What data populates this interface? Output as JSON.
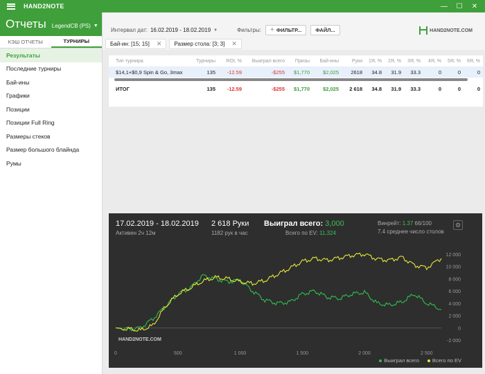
{
  "app": {
    "title": "HAND2NOTE",
    "window_controls": [
      "—",
      "☐",
      "✕"
    ]
  },
  "sidebar": {
    "title": "Отчеты",
    "account": "LegendCB (PS)",
    "tabs": [
      {
        "label": "КЭШ ОТЧЕТЫ",
        "active": false
      },
      {
        "label": "ТУРНИРЫ",
        "active": true
      }
    ],
    "items": [
      {
        "label": "Результаты",
        "active": true
      },
      {
        "label": "Последние турниры",
        "active": false
      },
      {
        "label": "Бай-ины",
        "active": false
      },
      {
        "label": "Графики",
        "active": false
      },
      {
        "label": "Позиции",
        "active": false
      },
      {
        "label": "Позиции Full Ring",
        "active": false
      },
      {
        "label": "Размеры стеков",
        "active": false
      },
      {
        "label": "Размер большого блайнда",
        "active": false
      },
      {
        "label": "Румы",
        "active": false
      }
    ]
  },
  "toolbar": {
    "interval_label": "Интервал дат:",
    "date_range": "16.02.2019 - 18.02.2019",
    "filters_label": "Фильтры:",
    "filter_button": "ФИЛЬТР...",
    "file_button": "ФАЙЛ...",
    "logo_text": "HAND2NOTE.COM"
  },
  "chips": [
    {
      "label": "Бай-ин: [15; 15]"
    },
    {
      "label": "Размер стола: [3; 3]"
    }
  ],
  "table": {
    "columns": [
      "Тип турнира",
      "Турниры",
      "ROI, %",
      "Выиграл всего",
      "Призы",
      "Бай-ины",
      "Руки",
      "1Я, %",
      "2Я, %",
      "3Я, %",
      "4Я, %",
      "5Я, %",
      "6Я, %"
    ],
    "rows": [
      [
        "$14,1+$0,9 Spin & Go, 3max",
        "135",
        "-12.59",
        "-$255",
        "$1,770",
        "$2,025",
        "2618",
        "34.8",
        "31.9",
        "33.3",
        "0",
        "0",
        "0"
      ]
    ],
    "total": [
      "ИТОГ",
      "135",
      "-12.59",
      "-$255",
      "$1,770",
      "$2,025",
      "2 618",
      "34.8",
      "31.9",
      "33.3",
      "0",
      "0",
      "0"
    ]
  },
  "chart_panel": {
    "date_range": "17.02.2019 - 18.02.2019",
    "active": "Активен 2ч 12м",
    "hands": "2 618 Руки",
    "hands_per_hour": "1182 рук в час",
    "won_label": "Выиграл всего:",
    "won_value": "3,000",
    "ev_label": "Всего по EV:",
    "ev_value": "11,324",
    "winrate_label": "Винрейт:",
    "winrate_value": "1.37",
    "winrate_tail": "66/100",
    "avg_tables": "7.4 среднее число столов",
    "watermark": "HAND2NOTE.COM",
    "colors": {
      "won": "#2fbf4f",
      "ev": "#e8e83a",
      "background": "#2e2e2e"
    }
  },
  "chart_data": {
    "type": "line",
    "x_ticks": [
      0,
      500,
      1000,
      1500,
      2000,
      2500
    ],
    "x_tick_labels": [
      "0",
      "500",
      "1 000",
      "1 500",
      "2 000",
      "2 500"
    ],
    "y_ticks": [
      -2000,
      0,
      2000,
      4000,
      6000,
      8000,
      10000,
      12000
    ],
    "y_tick_labels": [
      "-2 000",
      "0",
      "2 000",
      "4 000",
      "6 000",
      "8 000",
      "10 000",
      "12 000"
    ],
    "xlim": [
      0,
      2618
    ],
    "ylim": [
      -3000,
      13000
    ],
    "x": [
      0,
      100,
      200,
      300,
      400,
      500,
      600,
      700,
      800,
      900,
      1000,
      1100,
      1200,
      1300,
      1400,
      1500,
      1600,
      1700,
      1800,
      1900,
      2000,
      2100,
      2200,
      2300,
      2400,
      2500,
      2618
    ],
    "series": [
      {
        "name": "Выиграл всего",
        "color": "#2fbf4f",
        "values": [
          0,
          -200,
          0,
          1500,
          3500,
          5500,
          6500,
          8500,
          8000,
          7500,
          7800,
          6000,
          4500,
          4000,
          4200,
          5500,
          6000,
          5000,
          4800,
          5500,
          5800,
          4000,
          3700,
          4200,
          5500,
          4000,
          3000
        ]
      },
      {
        "name": "Всего по EV",
        "color": "#e8e83a",
        "values": [
          0,
          -200,
          -400,
          400,
          3500,
          5500,
          6500,
          7600,
          8200,
          8000,
          7500,
          7200,
          7700,
          8700,
          9700,
          10800,
          11300,
          11000,
          11400,
          11800,
          12000,
          11200,
          11000,
          11500,
          10200,
          9800,
          11300
        ]
      }
    ]
  }
}
